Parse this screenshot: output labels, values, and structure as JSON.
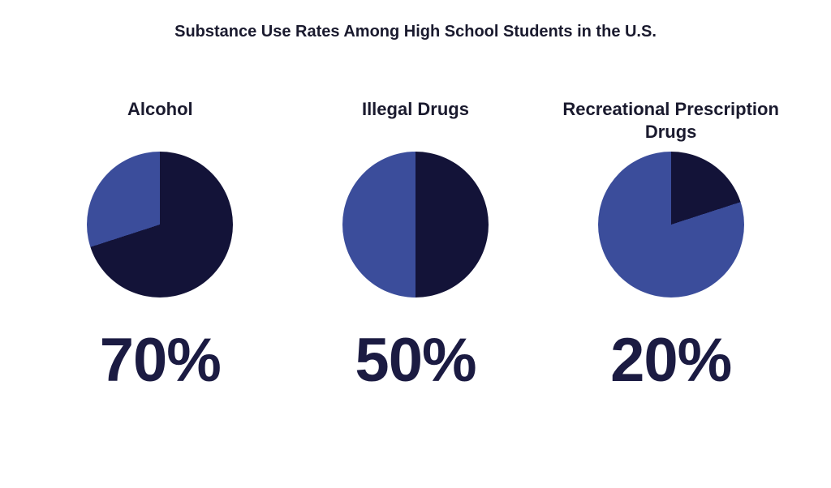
{
  "title": {
    "text": "Substance Use Rates Among High School Students in the U.S.",
    "fontsize": 20,
    "fontweight": 700,
    "color": "#1a1a2e"
  },
  "layout": {
    "background_color": "#ffffff",
    "pie_diameter": 180,
    "label_fontsize": 22,
    "label_fontweight": 700,
    "label_color": "#1a1a2e",
    "pct_fontsize": 76,
    "pct_fontweight": 800,
    "pct_color": "#1b1b42"
  },
  "palette": {
    "dark": "#131338",
    "light": "#3b4d9b"
  },
  "charts": [
    {
      "id": "alcohol",
      "label": "Alcohol",
      "value_pct": 70,
      "display_pct": "70%",
      "slice_color": "#131338",
      "remainder_color": "#3b4d9b",
      "start_angle_deg": 0
    },
    {
      "id": "illegal-drugs",
      "label": "Illegal Drugs",
      "value_pct": 50,
      "display_pct": "50%",
      "slice_color": "#131338",
      "remainder_color": "#3b4d9b",
      "start_angle_deg": 0
    },
    {
      "id": "rx-drugs",
      "label": "Recreational Prescription Drugs",
      "value_pct": 20,
      "display_pct": "20%",
      "slice_color": "#131338",
      "remainder_color": "#3b4d9b",
      "start_angle_deg": 0
    }
  ]
}
